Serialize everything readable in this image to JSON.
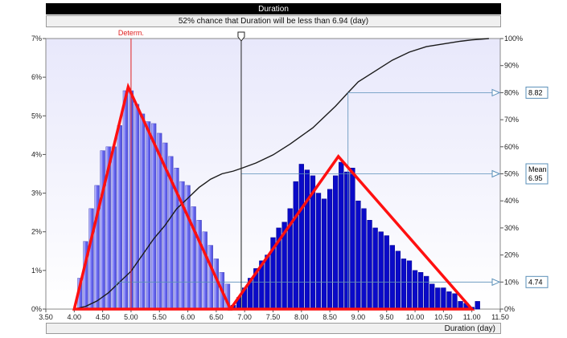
{
  "header": {
    "title": "Duration",
    "subtitle": "52% chance that Duration will be less than 6.94 (day)"
  },
  "footer": {
    "xlabel": "Duration (day)"
  },
  "chart_data": {
    "type": "bar",
    "title": "Duration",
    "subtitle": "52% chance that Duration will be less than 6.94 (day)",
    "xlabel": "Duration (day)",
    "xlim": [
      3.5,
      11.5
    ],
    "x_ticks": [
      "3.50",
      "4.00",
      "4.50",
      "5.00",
      "5.50",
      "6.00",
      "6.50",
      "7.00",
      "7.50",
      "8.00",
      "8.50",
      "9.00",
      "9.50",
      "10.00",
      "10.50",
      "11.00",
      "11.50"
    ],
    "ylim": [
      0,
      7
    ],
    "y_ticks": [
      "0%",
      "1%",
      "2%",
      "3%",
      "4%",
      "5%",
      "6%",
      "7%"
    ],
    "y2lim": [
      0,
      100
    ],
    "y2_ticks": [
      "0%",
      "10%",
      "20%",
      "30%",
      "40%",
      "50%",
      "60%",
      "70%",
      "80%",
      "90%",
      "100%"
    ],
    "grid": false,
    "bin_width": 0.1,
    "series": [
      {
        "color": "#6a6af0",
        "x": [
          4.1,
          4.2,
          4.3,
          4.4,
          4.5,
          4.6,
          4.7,
          4.8,
          4.9,
          5.0,
          5.1,
          5.2,
          5.3,
          5.4,
          5.5,
          5.6,
          5.7,
          5.8,
          5.9,
          6.0,
          6.1,
          6.2,
          6.3,
          6.4,
          6.5,
          6.6,
          6.7
        ],
        "values": [
          0.8,
          1.75,
          2.6,
          3.2,
          4.1,
          4.2,
          4.2,
          4.75,
          5.65,
          5.65,
          5.3,
          5.05,
          4.85,
          4.8,
          4.55,
          4.3,
          3.95,
          3.65,
          3.3,
          3.2,
          2.65,
          2.3,
          2.0,
          1.65,
          1.3,
          0.95,
          0.65
        ]
      },
      {
        "color": "#0a0ac8",
        "x": [
          6.8,
          6.9,
          7.0,
          7.1,
          7.2,
          7.3,
          7.4,
          7.5,
          7.6,
          7.7,
          7.8,
          7.9,
          8.0,
          8.1,
          8.2,
          8.3,
          8.4,
          8.5,
          8.6,
          8.7,
          8.8,
          8.9,
          9.0,
          9.1,
          9.2,
          9.3,
          9.4,
          9.5,
          9.6,
          9.7,
          9.8,
          9.9,
          10.0,
          10.1,
          10.2,
          10.3,
          10.4,
          10.5,
          10.6,
          10.7,
          10.8,
          10.9,
          11.0,
          11.1
        ],
        "values": [
          0.1,
          0.3,
          0.55,
          0.8,
          1.05,
          1.25,
          1.4,
          1.85,
          2.1,
          2.25,
          2.6,
          3.3,
          3.75,
          3.6,
          3.45,
          3.0,
          2.85,
          3.1,
          3.45,
          3.8,
          3.55,
          3.65,
          2.8,
          2.6,
          2.3,
          2.1,
          2.0,
          1.9,
          1.65,
          1.5,
          1.3,
          1.25,
          1.0,
          0.95,
          0.85,
          0.65,
          0.55,
          0.55,
          0.45,
          0.4,
          0.2,
          0.15,
          0.05,
          0.2
        ]
      }
    ],
    "cumulative": {
      "x": [
        4.0,
        4.2,
        4.4,
        4.6,
        4.8,
        5.0,
        5.2,
        5.4,
        5.6,
        5.8,
        6.0,
        6.2,
        6.4,
        6.6,
        6.8,
        6.94,
        7.2,
        7.5,
        7.8,
        8.0,
        8.2,
        8.4,
        8.6,
        8.82,
        9.0,
        9.3,
        9.6,
        9.9,
        10.2,
        10.5,
        10.8,
        11.0,
        11.3
      ],
      "y": [
        0,
        1,
        3,
        6,
        10,
        14,
        20,
        26,
        31,
        37,
        41,
        45,
        48,
        50,
        51,
        52,
        54,
        57,
        61,
        64,
        67,
        71,
        75,
        80,
        84,
        88,
        92,
        95,
        97,
        98,
        99,
        99.5,
        100
      ]
    },
    "determ": {
      "label": "Determ.",
      "x": 5.0
    },
    "slider_x": 6.94,
    "percentile_markers": [
      {
        "percent": 10,
        "x": 4.74,
        "label": "4.74"
      },
      {
        "percent": 50,
        "x": 6.94,
        "label_lines": [
          "Mean",
          "6.95"
        ]
      },
      {
        "percent": 80,
        "x": 8.82,
        "label": "8.82"
      }
    ],
    "annotations": [
      {
        "type": "triangle",
        "color": "#ff1010",
        "points": [
          [
            4.0,
            0
          ],
          [
            4.95,
            5.75
          ],
          [
            6.75,
            0
          ]
        ]
      },
      {
        "type": "triangle",
        "color": "#ff1010",
        "points": [
          [
            6.75,
            0
          ],
          [
            8.65,
            3.95
          ],
          [
            11.0,
            0
          ]
        ]
      }
    ],
    "colors": {
      "plot_top": "#e8e8fb",
      "plot_bottom": "#ffffff",
      "determ": "#e02020",
      "cumulative": "#1a1a1a",
      "markers": "#5a8fb8"
    }
  }
}
